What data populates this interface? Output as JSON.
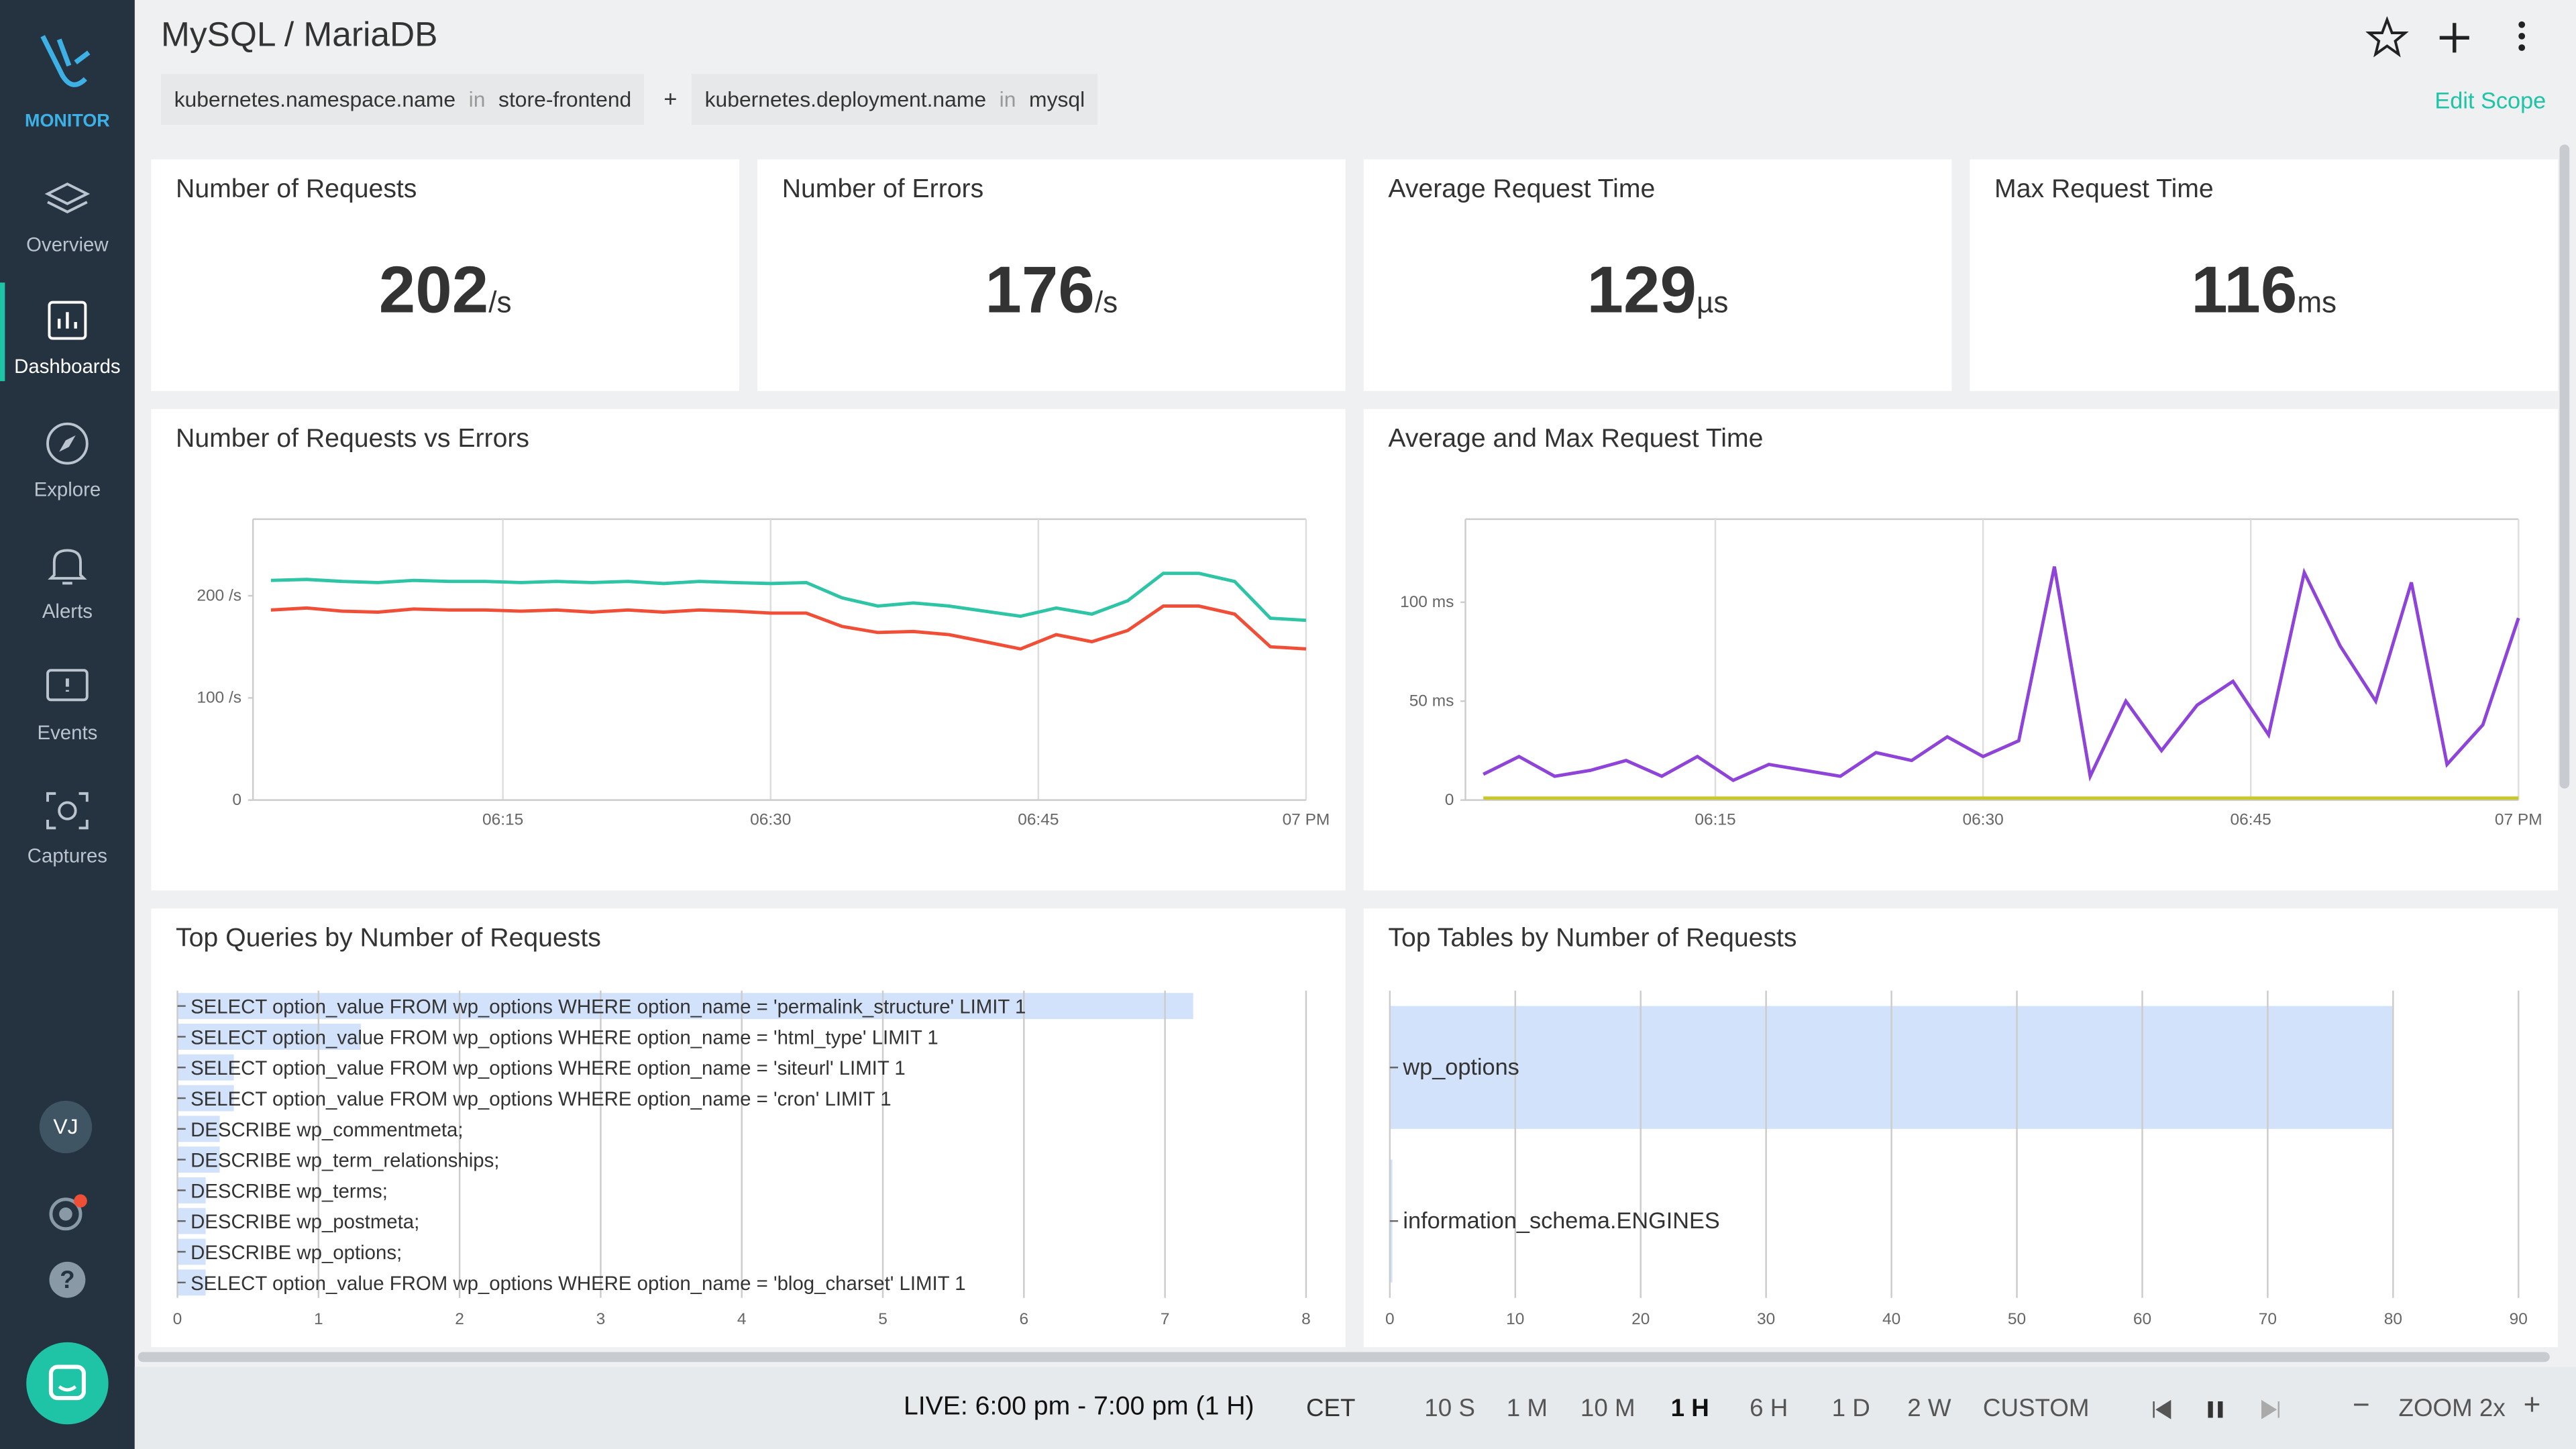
{
  "sidebar": {
    "brand": "MONITOR",
    "nav": [
      "Overview",
      "Dashboards",
      "Explore",
      "Alerts",
      "Events",
      "Captures"
    ],
    "active": 1,
    "user": "VJ"
  },
  "header": {
    "title": "MySQL / MariaDB",
    "filters": [
      {
        "key": "kubernetes.namespace.name",
        "op": "in",
        "value": "store-frontend"
      },
      {
        "key": "kubernetes.deployment.name",
        "op": "in",
        "value": "mysql"
      }
    ],
    "joiner": "+",
    "edit": "Edit Scope"
  },
  "stats": [
    {
      "title": "Number of Requests",
      "value": 202,
      "unit": "/s"
    },
    {
      "title": "Number of Errors",
      "value": 176,
      "unit": "/s"
    },
    {
      "title": "Average Request Time",
      "value": 129,
      "unit": "µs"
    },
    {
      "title": "Max Request Time",
      "value": 116,
      "unit": "ms"
    }
  ],
  "chart_data": [
    {
      "type": "line",
      "title": "Number of Requests vs Errors",
      "x": [
        "06:02",
        "06:04",
        "06:06",
        "06:08",
        "06:10",
        "06:12",
        "06:14",
        "06:16",
        "06:18",
        "06:20",
        "06:22",
        "06:24",
        "06:26",
        "06:28",
        "06:30",
        "06:32",
        "06:34",
        "06:36",
        "06:38",
        "06:40",
        "06:42",
        "06:44",
        "06:46",
        "06:48",
        "06:50",
        "06:52",
        "06:54",
        "06:56",
        "06:58",
        "07:00"
      ],
      "series": [
        {
          "color": "#2ec4a6",
          "values": [
            215,
            216,
            214,
            213,
            215,
            214,
            214,
            213,
            214,
            213,
            214,
            212,
            214,
            213,
            212,
            213,
            198,
            190,
            193,
            190,
            185,
            180,
            188,
            182,
            195,
            222,
            222,
            214,
            178,
            176
          ]
        },
        {
          "color": "#f04e37",
          "values": [
            186,
            188,
            185,
            184,
            187,
            186,
            186,
            185,
            186,
            184,
            186,
            184,
            186,
            185,
            183,
            183,
            170,
            164,
            165,
            162,
            155,
            148,
            162,
            155,
            166,
            190,
            190,
            182,
            150,
            148
          ]
        }
      ],
      "xlim": [
        "06:01",
        "07:00"
      ],
      "xticks": [
        "06:15",
        "06:30",
        "06:45",
        {
          "value": "07:00",
          "label": "07 PM"
        }
      ],
      "ylim": [
        0,
        275
      ],
      "yticks": [
        0,
        {
          "value": 100,
          "label": "100 /s"
        },
        {
          "value": 200,
          "label": "200 /s"
        }
      ]
    },
    {
      "type": "line",
      "title": "Average and Max Request Time",
      "x": [
        "06:02",
        "06:04",
        "06:06",
        "06:08",
        "06:10",
        "06:12",
        "06:14",
        "06:16",
        "06:18",
        "06:20",
        "06:22",
        "06:24",
        "06:26",
        "06:28",
        "06:30",
        "06:32",
        "06:34",
        "06:36",
        "06:38",
        "06:40",
        "06:42",
        "06:44",
        "06:46",
        "06:48",
        "06:50",
        "06:52",
        "06:54",
        "06:56",
        "06:58",
        "07:00"
      ],
      "series": [
        {
          "color": "#8e44d9",
          "values": [
            13,
            22,
            12,
            15,
            20,
            12,
            22,
            10,
            18,
            15,
            12,
            24,
            20,
            32,
            22,
            30,
            118,
            12,
            50,
            25,
            48,
            60,
            33,
            115,
            78,
            50,
            110,
            18,
            38,
            92
          ]
        },
        {
          "color": "#c8c82a",
          "values": [
            1,
            1,
            1,
            1,
            1,
            1,
            1,
            1,
            1,
            1,
            1,
            1,
            1,
            1,
            1,
            1,
            1,
            1,
            1,
            1,
            1,
            1,
            1,
            1,
            1,
            1,
            1,
            1,
            1,
            1
          ]
        }
      ],
      "xlim": [
        "06:01",
        "07:00"
      ],
      "xticks": [
        "06:15",
        "06:30",
        "06:45",
        {
          "value": "07:00",
          "label": "07 PM"
        }
      ],
      "ylim": [
        0,
        142
      ],
      "yticks": [
        0,
        {
          "value": 50,
          "label": "50 ms"
        },
        {
          "value": 100,
          "label": "100 ms"
        }
      ]
    },
    {
      "type": "bar",
      "orientation": "horizontal",
      "title": "Top Queries by Number of Requests",
      "color": "#d3e2fb",
      "categories": [
        "SELECT option_value FROM wp_options WHERE option_name = 'permalink_structure' LIMIT 1",
        "SELECT option_value FROM wp_options WHERE option_name = 'html_type' LIMIT 1",
        "SELECT option_value FROM wp_options WHERE option_name = 'siteurl' LIMIT 1",
        "SELECT option_value FROM wp_options WHERE option_name = 'cron' LIMIT 1",
        "DESCRIBE wp_commentmeta;",
        "DESCRIBE wp_term_relationships;",
        "DESCRIBE wp_terms;",
        "DESCRIBE wp_postmeta;",
        "DESCRIBE wp_options;",
        "SELECT option_value FROM wp_options WHERE option_name = 'blog_charset' LIMIT 1"
      ],
      "values": [
        7.2,
        1.3,
        0.4,
        0.4,
        0.3,
        0.3,
        0.2,
        0.2,
        0.2,
        0.2
      ],
      "xlim": [
        0,
        8
      ],
      "xticks": [
        0,
        1,
        2,
        3,
        4,
        5,
        6,
        7,
        8
      ]
    },
    {
      "type": "bar",
      "orientation": "horizontal",
      "title": "Top Tables by Number of Requests",
      "color": "#d3e2fb",
      "categories": [
        "wp_options",
        "information_schema.ENGINES"
      ],
      "values": [
        80,
        0.2
      ],
      "xlim": [
        0,
        90
      ],
      "xticks": [
        0,
        10,
        20,
        30,
        40,
        50,
        60,
        70,
        80,
        90
      ]
    }
  ],
  "timebar": {
    "live": "LIVE: 6:00 pm - 7:00 pm (1 H)",
    "zone": "CET",
    "options": [
      "10 S",
      "1 M",
      "10 M",
      "1 H",
      "6 H",
      "1 D",
      "2 W",
      "CUSTOM"
    ],
    "selected": 3,
    "zoom": "ZOOM 2x"
  }
}
